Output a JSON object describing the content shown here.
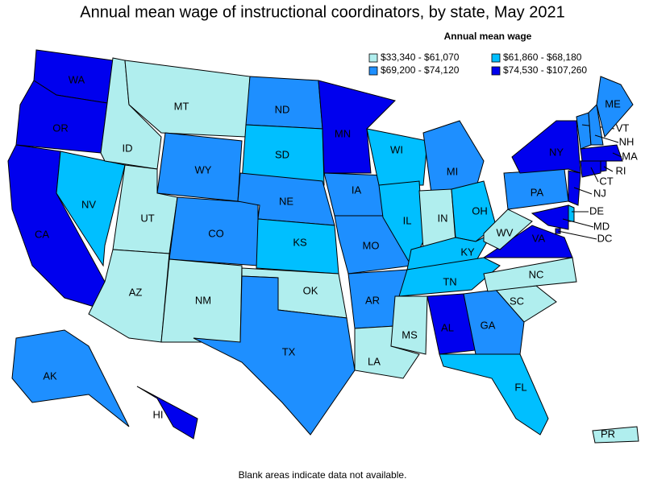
{
  "title": "Annual mean wage of instructional coordinators, by state, May 2021",
  "legend": {
    "title": "Annual mean wage",
    "bins": [
      {
        "label": "$33,340 - $61,070",
        "color": "#b0eeee"
      },
      {
        "label": "$61,860 - $68,180",
        "color": "#00bfff"
      },
      {
        "label": "$69,200 - $74,120",
        "color": "#1e8fff"
      },
      {
        "label": "$74,530 - $107,260",
        "color": "#0000ee"
      }
    ]
  },
  "states": [
    {
      "abbr": "WA",
      "bin": 3
    },
    {
      "abbr": "OR",
      "bin": 3
    },
    {
      "abbr": "CA",
      "bin": 3
    },
    {
      "abbr": "NV",
      "bin": 1
    },
    {
      "abbr": "ID",
      "bin": 0
    },
    {
      "abbr": "MT",
      "bin": 0
    },
    {
      "abbr": "WY",
      "bin": 2
    },
    {
      "abbr": "UT",
      "bin": 0
    },
    {
      "abbr": "AZ",
      "bin": 0
    },
    {
      "abbr": "CO",
      "bin": 2
    },
    {
      "abbr": "NM",
      "bin": 0
    },
    {
      "abbr": "ND",
      "bin": 2
    },
    {
      "abbr": "SD",
      "bin": 1
    },
    {
      "abbr": "NE",
      "bin": 2
    },
    {
      "abbr": "KS",
      "bin": 1
    },
    {
      "abbr": "OK",
      "bin": 0
    },
    {
      "abbr": "TX",
      "bin": 2
    },
    {
      "abbr": "MN",
      "bin": 3
    },
    {
      "abbr": "IA",
      "bin": 2
    },
    {
      "abbr": "MO",
      "bin": 2
    },
    {
      "abbr": "AR",
      "bin": 2
    },
    {
      "abbr": "LA",
      "bin": 0
    },
    {
      "abbr": "WI",
      "bin": 1
    },
    {
      "abbr": "IL",
      "bin": 1
    },
    {
      "abbr": "MI",
      "bin": 2
    },
    {
      "abbr": "IN",
      "bin": 0
    },
    {
      "abbr": "OH",
      "bin": 1
    },
    {
      "abbr": "KY",
      "bin": 1
    },
    {
      "abbr": "TN",
      "bin": 1
    },
    {
      "abbr": "MS",
      "bin": 0
    },
    {
      "abbr": "AL",
      "bin": 3
    },
    {
      "abbr": "GA",
      "bin": 2
    },
    {
      "abbr": "FL",
      "bin": 1
    },
    {
      "abbr": "SC",
      "bin": 0
    },
    {
      "abbr": "NC",
      "bin": 0
    },
    {
      "abbr": "VA",
      "bin": 3
    },
    {
      "abbr": "WV",
      "bin": 0
    },
    {
      "abbr": "PA",
      "bin": 2
    },
    {
      "abbr": "NY",
      "bin": 3
    },
    {
      "abbr": "NJ",
      "bin": 3
    },
    {
      "abbr": "DE",
      "bin": 1
    },
    {
      "abbr": "MD",
      "bin": 3
    },
    {
      "abbr": "DC",
      "bin": 3
    },
    {
      "abbr": "VT",
      "bin": 2
    },
    {
      "abbr": "NH",
      "bin": 2
    },
    {
      "abbr": "ME",
      "bin": 2
    },
    {
      "abbr": "MA",
      "bin": 3
    },
    {
      "abbr": "CT",
      "bin": 3
    },
    {
      "abbr": "RI",
      "bin": 3
    },
    {
      "abbr": "AK",
      "bin": 2
    },
    {
      "abbr": "HI",
      "bin": 3
    },
    {
      "abbr": "PR",
      "bin": 0
    }
  ],
  "footnote": "Blank areas indicate data not available."
}
